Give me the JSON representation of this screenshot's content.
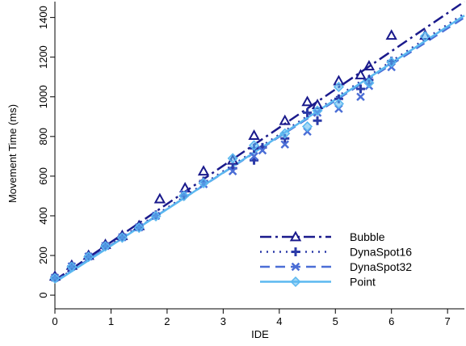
{
  "chart_data": {
    "type": "scatter",
    "xlabel": "IDE",
    "ylabel": "Movement Time (ms)",
    "xlim": [
      0,
      7.3
    ],
    "ylim": [
      -20,
      1480
    ],
    "xticks": [
      "0",
      "1",
      "2",
      "3",
      "4",
      "5",
      "6",
      "7"
    ],
    "yticks": [
      "0",
      "200",
      "400",
      "600",
      "800",
      "1000",
      "1200",
      "1400"
    ],
    "legend_position": "bottom-right",
    "grid": false,
    "series": [
      {
        "name": "Bubble",
        "color": "#1a1a8c",
        "marker": "triangle",
        "line_style": "dashdot",
        "fit": [
          [
            0,
            75
          ],
          [
            7.3,
            1480
          ]
        ],
        "points": [
          [
            0,
            95
          ],
          [
            0.3,
            150
          ],
          [
            0.6,
            200
          ],
          [
            0.9,
            255
          ],
          [
            1.2,
            300
          ],
          [
            1.5,
            350
          ],
          [
            1.87,
            485
          ],
          [
            2.32,
            540
          ],
          [
            2.65,
            625
          ],
          [
            3.17,
            680
          ],
          [
            3.55,
            805
          ],
          [
            4.1,
            880
          ],
          [
            4.5,
            975
          ],
          [
            4.68,
            960
          ],
          [
            5.06,
            1080
          ],
          [
            5.45,
            1110
          ],
          [
            5.6,
            1155
          ],
          [
            6.0,
            1310
          ],
          [
            6.6,
            1310
          ]
        ]
      },
      {
        "name": "DynaSpot16",
        "color": "#2b3aa8",
        "marker": "plus",
        "line_style": "dotted",
        "fit": [
          [
            0,
            70
          ],
          [
            7.3,
            1420
          ]
        ],
        "points": [
          [
            0,
            90
          ],
          [
            0.3,
            145
          ],
          [
            0.6,
            195
          ],
          [
            0.9,
            250
          ],
          [
            1.2,
            295
          ],
          [
            1.5,
            345
          ],
          [
            1.8,
            405
          ],
          [
            2.3,
            500
          ],
          [
            2.65,
            575
          ],
          [
            3.17,
            640
          ],
          [
            3.55,
            680
          ],
          [
            3.55,
            740
          ],
          [
            3.7,
            745
          ],
          [
            4.1,
            790
          ],
          [
            4.5,
            920
          ],
          [
            4.68,
            880
          ],
          [
            5.06,
            990
          ],
          [
            5.45,
            1040
          ],
          [
            5.6,
            1085
          ],
          [
            6.0,
            1180
          ]
        ]
      },
      {
        "name": "DynaSpot32",
        "color": "#4b6ed6",
        "marker": "x",
        "line_style": "dashed",
        "fit": [
          [
            0,
            70
          ],
          [
            7.3,
            1400
          ]
        ],
        "points": [
          [
            0,
            88
          ],
          [
            0.3,
            145
          ],
          [
            0.6,
            195
          ],
          [
            0.9,
            248
          ],
          [
            1.2,
            292
          ],
          [
            1.5,
            342
          ],
          [
            1.8,
            400
          ],
          [
            2.3,
            510
          ],
          [
            2.65,
            560
          ],
          [
            3.17,
            625
          ],
          [
            3.55,
            700
          ],
          [
            3.7,
            730
          ],
          [
            4.1,
            760
          ],
          [
            4.5,
            825
          ],
          [
            4.68,
            920
          ],
          [
            5.06,
            940
          ],
          [
            5.45,
            1000
          ],
          [
            5.6,
            1055
          ],
          [
            6.0,
            1150
          ]
        ]
      },
      {
        "name": "Point",
        "color": "#5bb8f0",
        "marker": "diamond",
        "line_style": "solid",
        "fit": [
          [
            0,
            65
          ],
          [
            7.3,
            1410
          ]
        ],
        "points": [
          [
            0,
            85
          ],
          [
            0.3,
            143
          ],
          [
            0.6,
            193
          ],
          [
            0.9,
            246
          ],
          [
            1.2,
            290
          ],
          [
            1.5,
            340
          ],
          [
            1.8,
            398
          ],
          [
            2.3,
            500
          ],
          [
            2.65,
            565
          ],
          [
            3.17,
            690
          ],
          [
            3.55,
            755
          ],
          [
            4.1,
            815
          ],
          [
            4.5,
            850
          ],
          [
            4.68,
            930
          ],
          [
            5.06,
            965
          ],
          [
            5.06,
            1050
          ],
          [
            5.6,
            1070
          ],
          [
            6.0,
            1175
          ],
          [
            6.6,
            1305
          ]
        ]
      }
    ]
  }
}
